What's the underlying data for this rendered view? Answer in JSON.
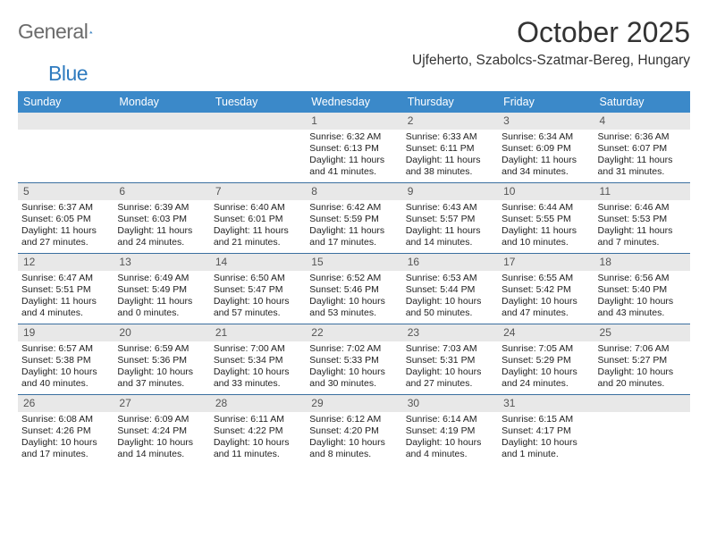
{
  "logo": {
    "text1": "General",
    "text2": "Blue"
  },
  "header": {
    "month_title": "October 2025",
    "location": "Ujfeherto, Szabolcs-Szatmar-Bereg, Hungary"
  },
  "colors": {
    "header_bg": "#3b89c9",
    "header_text": "#ffffff",
    "daynum_bg": "#e8e8e8",
    "daynum_text": "#555555",
    "row_border": "#3b6fa0",
    "body_text": "#222222",
    "logo_gray": "#6b6b6b",
    "logo_blue": "#2f7bbf"
  },
  "weekdays": [
    "Sunday",
    "Monday",
    "Tuesday",
    "Wednesday",
    "Thursday",
    "Friday",
    "Saturday"
  ],
  "weeks": [
    [
      {
        "blank": true
      },
      {
        "blank": true
      },
      {
        "blank": true
      },
      {
        "n": "1",
        "sunrise": "Sunrise: 6:32 AM",
        "sunset": "Sunset: 6:13 PM",
        "dl1": "Daylight: 11 hours",
        "dl2": "and 41 minutes."
      },
      {
        "n": "2",
        "sunrise": "Sunrise: 6:33 AM",
        "sunset": "Sunset: 6:11 PM",
        "dl1": "Daylight: 11 hours",
        "dl2": "and 38 minutes."
      },
      {
        "n": "3",
        "sunrise": "Sunrise: 6:34 AM",
        "sunset": "Sunset: 6:09 PM",
        "dl1": "Daylight: 11 hours",
        "dl2": "and 34 minutes."
      },
      {
        "n": "4",
        "sunrise": "Sunrise: 6:36 AM",
        "sunset": "Sunset: 6:07 PM",
        "dl1": "Daylight: 11 hours",
        "dl2": "and 31 minutes."
      }
    ],
    [
      {
        "n": "5",
        "sunrise": "Sunrise: 6:37 AM",
        "sunset": "Sunset: 6:05 PM",
        "dl1": "Daylight: 11 hours",
        "dl2": "and 27 minutes."
      },
      {
        "n": "6",
        "sunrise": "Sunrise: 6:39 AM",
        "sunset": "Sunset: 6:03 PM",
        "dl1": "Daylight: 11 hours",
        "dl2": "and 24 minutes."
      },
      {
        "n": "7",
        "sunrise": "Sunrise: 6:40 AM",
        "sunset": "Sunset: 6:01 PM",
        "dl1": "Daylight: 11 hours",
        "dl2": "and 21 minutes."
      },
      {
        "n": "8",
        "sunrise": "Sunrise: 6:42 AM",
        "sunset": "Sunset: 5:59 PM",
        "dl1": "Daylight: 11 hours",
        "dl2": "and 17 minutes."
      },
      {
        "n": "9",
        "sunrise": "Sunrise: 6:43 AM",
        "sunset": "Sunset: 5:57 PM",
        "dl1": "Daylight: 11 hours",
        "dl2": "and 14 minutes."
      },
      {
        "n": "10",
        "sunrise": "Sunrise: 6:44 AM",
        "sunset": "Sunset: 5:55 PM",
        "dl1": "Daylight: 11 hours",
        "dl2": "and 10 minutes."
      },
      {
        "n": "11",
        "sunrise": "Sunrise: 6:46 AM",
        "sunset": "Sunset: 5:53 PM",
        "dl1": "Daylight: 11 hours",
        "dl2": "and 7 minutes."
      }
    ],
    [
      {
        "n": "12",
        "sunrise": "Sunrise: 6:47 AM",
        "sunset": "Sunset: 5:51 PM",
        "dl1": "Daylight: 11 hours",
        "dl2": "and 4 minutes."
      },
      {
        "n": "13",
        "sunrise": "Sunrise: 6:49 AM",
        "sunset": "Sunset: 5:49 PM",
        "dl1": "Daylight: 11 hours",
        "dl2": "and 0 minutes."
      },
      {
        "n": "14",
        "sunrise": "Sunrise: 6:50 AM",
        "sunset": "Sunset: 5:47 PM",
        "dl1": "Daylight: 10 hours",
        "dl2": "and 57 minutes."
      },
      {
        "n": "15",
        "sunrise": "Sunrise: 6:52 AM",
        "sunset": "Sunset: 5:46 PM",
        "dl1": "Daylight: 10 hours",
        "dl2": "and 53 minutes."
      },
      {
        "n": "16",
        "sunrise": "Sunrise: 6:53 AM",
        "sunset": "Sunset: 5:44 PM",
        "dl1": "Daylight: 10 hours",
        "dl2": "and 50 minutes."
      },
      {
        "n": "17",
        "sunrise": "Sunrise: 6:55 AM",
        "sunset": "Sunset: 5:42 PM",
        "dl1": "Daylight: 10 hours",
        "dl2": "and 47 minutes."
      },
      {
        "n": "18",
        "sunrise": "Sunrise: 6:56 AM",
        "sunset": "Sunset: 5:40 PM",
        "dl1": "Daylight: 10 hours",
        "dl2": "and 43 minutes."
      }
    ],
    [
      {
        "n": "19",
        "sunrise": "Sunrise: 6:57 AM",
        "sunset": "Sunset: 5:38 PM",
        "dl1": "Daylight: 10 hours",
        "dl2": "and 40 minutes."
      },
      {
        "n": "20",
        "sunrise": "Sunrise: 6:59 AM",
        "sunset": "Sunset: 5:36 PM",
        "dl1": "Daylight: 10 hours",
        "dl2": "and 37 minutes."
      },
      {
        "n": "21",
        "sunrise": "Sunrise: 7:00 AM",
        "sunset": "Sunset: 5:34 PM",
        "dl1": "Daylight: 10 hours",
        "dl2": "and 33 minutes."
      },
      {
        "n": "22",
        "sunrise": "Sunrise: 7:02 AM",
        "sunset": "Sunset: 5:33 PM",
        "dl1": "Daylight: 10 hours",
        "dl2": "and 30 minutes."
      },
      {
        "n": "23",
        "sunrise": "Sunrise: 7:03 AM",
        "sunset": "Sunset: 5:31 PM",
        "dl1": "Daylight: 10 hours",
        "dl2": "and 27 minutes."
      },
      {
        "n": "24",
        "sunrise": "Sunrise: 7:05 AM",
        "sunset": "Sunset: 5:29 PM",
        "dl1": "Daylight: 10 hours",
        "dl2": "and 24 minutes."
      },
      {
        "n": "25",
        "sunrise": "Sunrise: 7:06 AM",
        "sunset": "Sunset: 5:27 PM",
        "dl1": "Daylight: 10 hours",
        "dl2": "and 20 minutes."
      }
    ],
    [
      {
        "n": "26",
        "sunrise": "Sunrise: 6:08 AM",
        "sunset": "Sunset: 4:26 PM",
        "dl1": "Daylight: 10 hours",
        "dl2": "and 17 minutes."
      },
      {
        "n": "27",
        "sunrise": "Sunrise: 6:09 AM",
        "sunset": "Sunset: 4:24 PM",
        "dl1": "Daylight: 10 hours",
        "dl2": "and 14 minutes."
      },
      {
        "n": "28",
        "sunrise": "Sunrise: 6:11 AM",
        "sunset": "Sunset: 4:22 PM",
        "dl1": "Daylight: 10 hours",
        "dl2": "and 11 minutes."
      },
      {
        "n": "29",
        "sunrise": "Sunrise: 6:12 AM",
        "sunset": "Sunset: 4:20 PM",
        "dl1": "Daylight: 10 hours",
        "dl2": "and 8 minutes."
      },
      {
        "n": "30",
        "sunrise": "Sunrise: 6:14 AM",
        "sunset": "Sunset: 4:19 PM",
        "dl1": "Daylight: 10 hours",
        "dl2": "and 4 minutes."
      },
      {
        "n": "31",
        "sunrise": "Sunrise: 6:15 AM",
        "sunset": "Sunset: 4:17 PM",
        "dl1": "Daylight: 10 hours",
        "dl2": "and 1 minute."
      },
      {
        "blank": true
      }
    ]
  ]
}
